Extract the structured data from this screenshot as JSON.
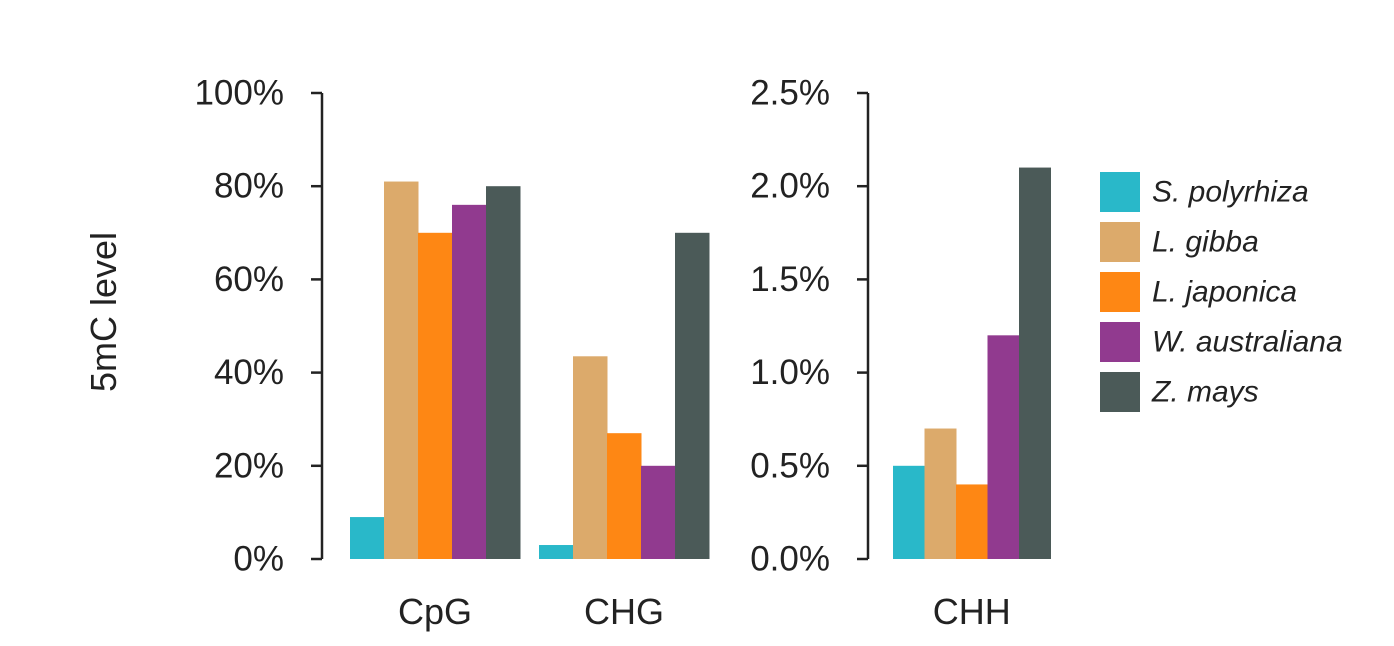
{
  "chart_data": {
    "type": "bar",
    "ylabel": "5mC level",
    "series": [
      {
        "name": "S. polyrhiza",
        "color": "#29b8c9"
      },
      {
        "name": "L. gibba",
        "color": "#dcaa6b"
      },
      {
        "name": "L. japonica",
        "color": "#fe8714"
      },
      {
        "name": "W. australiana",
        "color": "#913a8f"
      },
      {
        "name": "Z. mays",
        "color": "#4b5a58"
      }
    ],
    "panels": [
      {
        "categories": [
          "CpG",
          "CHG"
        ],
        "ylim": [
          0,
          100
        ],
        "yticks": [
          "0%",
          "20%",
          "40%",
          "60%",
          "80%",
          "100%"
        ],
        "unit": "%",
        "values": [
          [
            9,
            81,
            70,
            76,
            80
          ],
          [
            3,
            43.5,
            27,
            20,
            70
          ]
        ]
      },
      {
        "categories": [
          "CHH"
        ],
        "ylim": [
          0,
          2.5
        ],
        "yticks": [
          "0.0%",
          "0.5%",
          "1.0%",
          "1.5%",
          "2.0%",
          "2.5%"
        ],
        "unit": "%",
        "values": [
          [
            0.5,
            0.7,
            0.4,
            1.2,
            2.1
          ]
        ]
      }
    ],
    "legend_position": "right",
    "grid": false
  }
}
